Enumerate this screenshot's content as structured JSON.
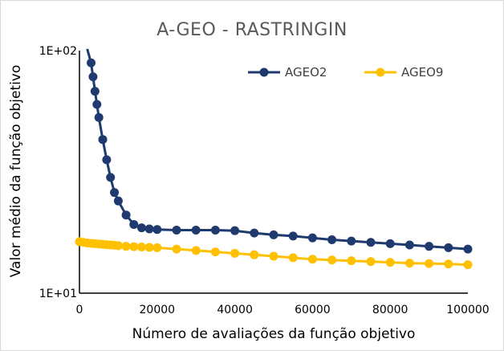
{
  "chart_data": {
    "type": "line",
    "title": "A-GEO - RASTRINGIN",
    "xlabel": "Número de avaliações da função objetivo",
    "ylabel": "Valor médio da função objetivo",
    "xlim": [
      0,
      100000
    ],
    "ylim": [
      10,
      100
    ],
    "y_scale": "log",
    "grid": false,
    "legend_position": "top-right",
    "x_ticks": [
      0,
      20000,
      40000,
      60000,
      80000,
      100000
    ],
    "x_tick_labels": [
      "0",
      "20000",
      "40000",
      "60000",
      "80000",
      "100000"
    ],
    "y_ticks": [
      10,
      100
    ],
    "y_tick_labels": [
      "1E+01",
      "1E+02"
    ],
    "series": [
      {
        "name": "AGEO2",
        "color": "#1f3a6e",
        "x": [
          2000,
          3000,
          3500,
          4000,
          4500,
          5000,
          6000,
          7000,
          8000,
          9000,
          10000,
          12000,
          14000,
          16000,
          18000,
          20000,
          25000,
          30000,
          35000,
          40000,
          45000,
          50000,
          55000,
          60000,
          65000,
          70000,
          75000,
          80000,
          85000,
          90000,
          95000,
          100000
        ],
        "values": [
          110,
          89,
          78,
          68,
          60,
          53,
          43,
          35.5,
          30,
          26,
          24,
          21,
          19.2,
          18.6,
          18.4,
          18.3,
          18.2,
          18.2,
          18.2,
          18.1,
          17.7,
          17.4,
          17.2,
          16.9,
          16.6,
          16.4,
          16.2,
          16.0,
          15.8,
          15.6,
          15.4,
          15.2
        ]
      },
      {
        "name": "AGEO9",
        "color": "#ffc000",
        "x": [
          0,
          1000,
          2000,
          3000,
          4000,
          5000,
          6000,
          7000,
          8000,
          9000,
          10000,
          12000,
          14000,
          16000,
          18000,
          20000,
          25000,
          30000,
          35000,
          40000,
          45000,
          50000,
          55000,
          60000,
          65000,
          70000,
          75000,
          80000,
          85000,
          90000,
          95000,
          100000
        ],
        "values": [
          16.3,
          16.2,
          16.1,
          16.05,
          16.0,
          15.95,
          15.9,
          15.85,
          15.8,
          15.75,
          15.7,
          15.6,
          15.55,
          15.5,
          15.45,
          15.4,
          15.2,
          15.0,
          14.8,
          14.6,
          14.4,
          14.2,
          14.0,
          13.8,
          13.7,
          13.6,
          13.5,
          13.4,
          13.3,
          13.25,
          13.2,
          13.1
        ]
      }
    ]
  }
}
